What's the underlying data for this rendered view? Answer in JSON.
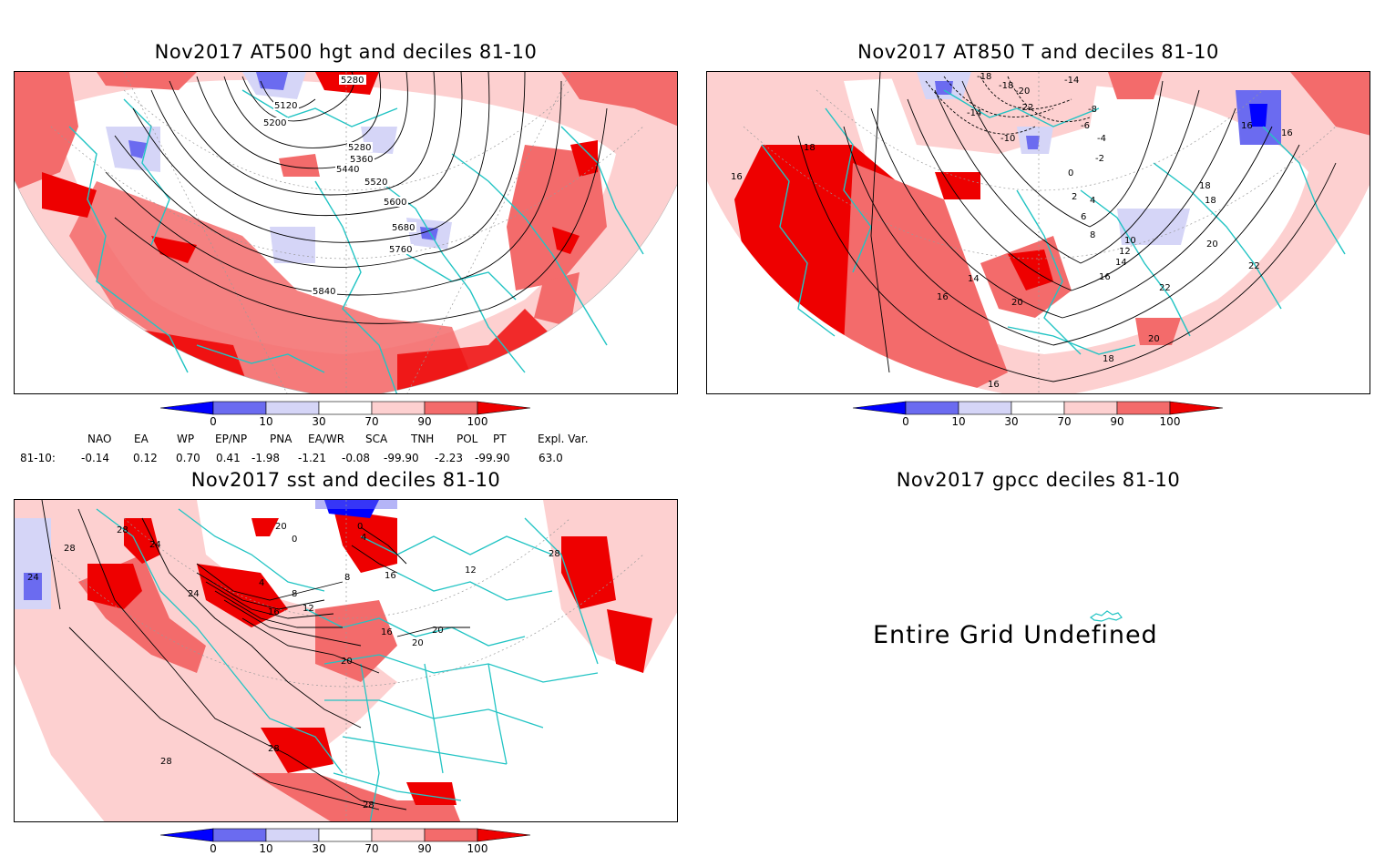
{
  "panels": {
    "z500": {
      "title": "Nov2017 AT500 hgt and deciles 81-10",
      "contour_labels": [
        "5280",
        "5120",
        "5200",
        "5280",
        "5360",
        "5440",
        "5520",
        "5600",
        "5680",
        "5760",
        "5840"
      ]
    },
    "t850": {
      "title": "Nov2017 AT850 T and deciles 81-10",
      "contour_labels": [
        "-18",
        "-18",
        "-20",
        "-14",
        "-14",
        "-22",
        "-8",
        "-6",
        "-10",
        "-4",
        "-2",
        "0",
        "2",
        "4",
        "6",
        "8",
        "10",
        "12",
        "14",
        "16",
        "18",
        "20",
        "22",
        "22",
        "14",
        "16",
        "18",
        "20",
        "16",
        "18",
        "16",
        "16",
        "16",
        "20",
        "18"
      ]
    },
    "sst": {
      "title": "Nov2017 sst and deciles 81-10",
      "contour_labels": [
        "28",
        "28",
        "24",
        "24",
        "20",
        "0",
        "0",
        "4",
        "4",
        "8",
        "8",
        "12",
        "16",
        "16",
        "20",
        "20",
        "20",
        "24",
        "28",
        "28",
        "28",
        "12",
        "16",
        "28"
      ]
    },
    "gpcc": {
      "title": "Nov2017 gpcc deciles 81-10",
      "message": "Entire Grid Undefined"
    }
  },
  "colorbar": {
    "ticks": [
      "0",
      "10",
      "30",
      "70",
      "90",
      "100"
    ],
    "colors": [
      "#0000ff",
      "#6b6bf0",
      "#d5d5f7",
      "#ffffff",
      "#fdd0d0",
      "#f36b6b",
      "#ee0000"
    ]
  },
  "indices": {
    "headers": [
      "NAO",
      "EA",
      "WP",
      "EP/NP",
      "PNA",
      "EA/WR",
      "SCA",
      "TNH",
      "POL",
      "PT",
      "Expl. Var."
    ],
    "row_label": "81-10:",
    "values": [
      "-0.14",
      "0.12",
      "0.70",
      "0.41",
      "-1.98",
      "-1.21",
      "-0.08",
      "-99.90",
      "-2.23",
      "-99.90",
      "63.0"
    ]
  },
  "colors": {
    "coast": "#22c4c4",
    "light_red": "#fdd0d0",
    "mid_red": "#f36b6b",
    "strong_red": "#ee0000",
    "light_blue": "#d5d5f7",
    "mid_blue": "#6b6bf0",
    "strong_blue": "#0000ff"
  }
}
